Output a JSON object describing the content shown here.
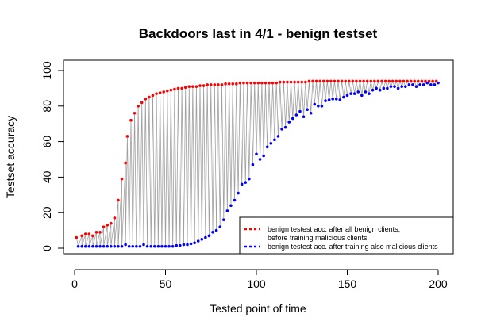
{
  "chart_data": {
    "type": "line",
    "title": "Backdoors last in 4/1 - benign testset",
    "xlabel": "Tested point of time",
    "ylabel": "Testset accuracy",
    "xlim": [
      0,
      200
    ],
    "ylim": [
      0,
      100
    ],
    "x_ticks": [
      0,
      50,
      100,
      150,
      200
    ],
    "y_ticks": [
      0,
      20,
      40,
      60,
      80,
      100
    ],
    "x_tick_labels": [
      "0",
      "50",
      "100",
      "150",
      "200"
    ],
    "y_tick_labels": [
      "0",
      "20",
      "40",
      "60",
      "80",
      "100"
    ],
    "grid": false,
    "legend_position": "bottom-right",
    "connector_color": "#a0a0a0",
    "series": [
      {
        "name": "benign testest acc. after all benign clients,",
        "name_line2": "before training malicious clients",
        "color": "#ff0000",
        "x": [
          1,
          4,
          6,
          8,
          10,
          12,
          14,
          16,
          18,
          20,
          22,
          24,
          26,
          28,
          29,
          31,
          33,
          35,
          37,
          39,
          41,
          43,
          45,
          47,
          49,
          51,
          53,
          55,
          57,
          59,
          61,
          63,
          65,
          67,
          69,
          71,
          73,
          75,
          77,
          79,
          81,
          83,
          85,
          87,
          89,
          91,
          93,
          95,
          97,
          99,
          101,
          103,
          105,
          107,
          109,
          111,
          113,
          115,
          117,
          119,
          121,
          123,
          125,
          127,
          129,
          131,
          133,
          135,
          137,
          139,
          141,
          143,
          145,
          147,
          149,
          151,
          153,
          155,
          157,
          159,
          161,
          163,
          165,
          167,
          169,
          171,
          173,
          175,
          177,
          179,
          181,
          183,
          185,
          187,
          189,
          191,
          193,
          195,
          197,
          199
        ],
        "values": [
          6,
          7,
          8,
          8,
          7,
          9,
          9,
          12,
          13,
          14,
          17,
          27,
          39,
          48,
          63,
          72,
          76,
          80,
          82,
          84,
          85,
          86,
          87,
          87.5,
          88,
          88.5,
          89,
          89.5,
          90,
          90,
          90.5,
          91,
          91,
          91,
          91.5,
          91.5,
          92,
          92,
          92,
          92,
          92,
          92.5,
          92.5,
          92.5,
          92.5,
          93,
          93,
          93,
          93,
          93,
          93,
          93,
          93,
          93,
          93,
          93,
          93.5,
          93.5,
          93.5,
          93.5,
          93.5,
          93.5,
          93.5,
          93.5,
          94,
          94,
          94,
          94,
          94,
          94,
          94,
          94,
          94,
          94,
          94,
          94,
          94,
          94,
          94,
          94,
          94,
          94,
          94,
          94,
          94,
          94,
          94,
          94,
          94,
          94,
          94,
          94,
          94,
          94,
          94,
          94,
          94,
          94,
          94,
          94
        ]
      },
      {
        "name": "benign testest acc. after training also malicious clients",
        "color": "#0000ff",
        "x": [
          2,
          4,
          6,
          8,
          10,
          12,
          14,
          16,
          18,
          20,
          22,
          24,
          26,
          28,
          30,
          32,
          34,
          36,
          38,
          40,
          42,
          44,
          46,
          48,
          50,
          52,
          54,
          56,
          58,
          60,
          62,
          64,
          66,
          68,
          70,
          72,
          74,
          76,
          78,
          80,
          82,
          84,
          86,
          88,
          90,
          92,
          94,
          96,
          98,
          100,
          102,
          104,
          106,
          108,
          110,
          112,
          114,
          116,
          118,
          120,
          122,
          124,
          126,
          128,
          130,
          132,
          134,
          136,
          138,
          140,
          142,
          144,
          146,
          148,
          150,
          152,
          154,
          156,
          158,
          160,
          162,
          164,
          166,
          168,
          170,
          172,
          174,
          176,
          178,
          180,
          182,
          184,
          186,
          188,
          190,
          192,
          194,
          196,
          198,
          200
        ],
        "values": [
          1,
          1,
          1,
          1,
          1,
          1,
          1,
          1,
          1,
          1,
          1,
          1,
          1,
          2,
          1,
          1,
          1,
          1,
          2,
          1,
          1,
          1,
          1,
          1,
          1,
          1,
          1,
          1.5,
          1.5,
          2,
          2,
          2.5,
          3,
          4,
          5,
          6,
          7,
          9,
          10,
          12,
          16,
          21,
          24,
          27,
          31,
          36,
          37,
          39,
          47,
          53,
          50,
          52,
          57,
          59,
          61,
          63,
          67,
          68,
          71,
          73,
          75,
          77,
          74,
          78,
          76,
          81,
          80,
          80,
          83,
          83.5,
          84,
          84,
          83.5,
          85,
          86,
          87,
          87,
          88,
          86,
          88,
          87,
          89,
          90,
          89,
          90,
          90,
          91,
          91,
          90,
          91,
          91,
          92,
          92,
          91,
          92,
          92,
          93,
          92,
          92,
          93
        ]
      }
    ]
  }
}
